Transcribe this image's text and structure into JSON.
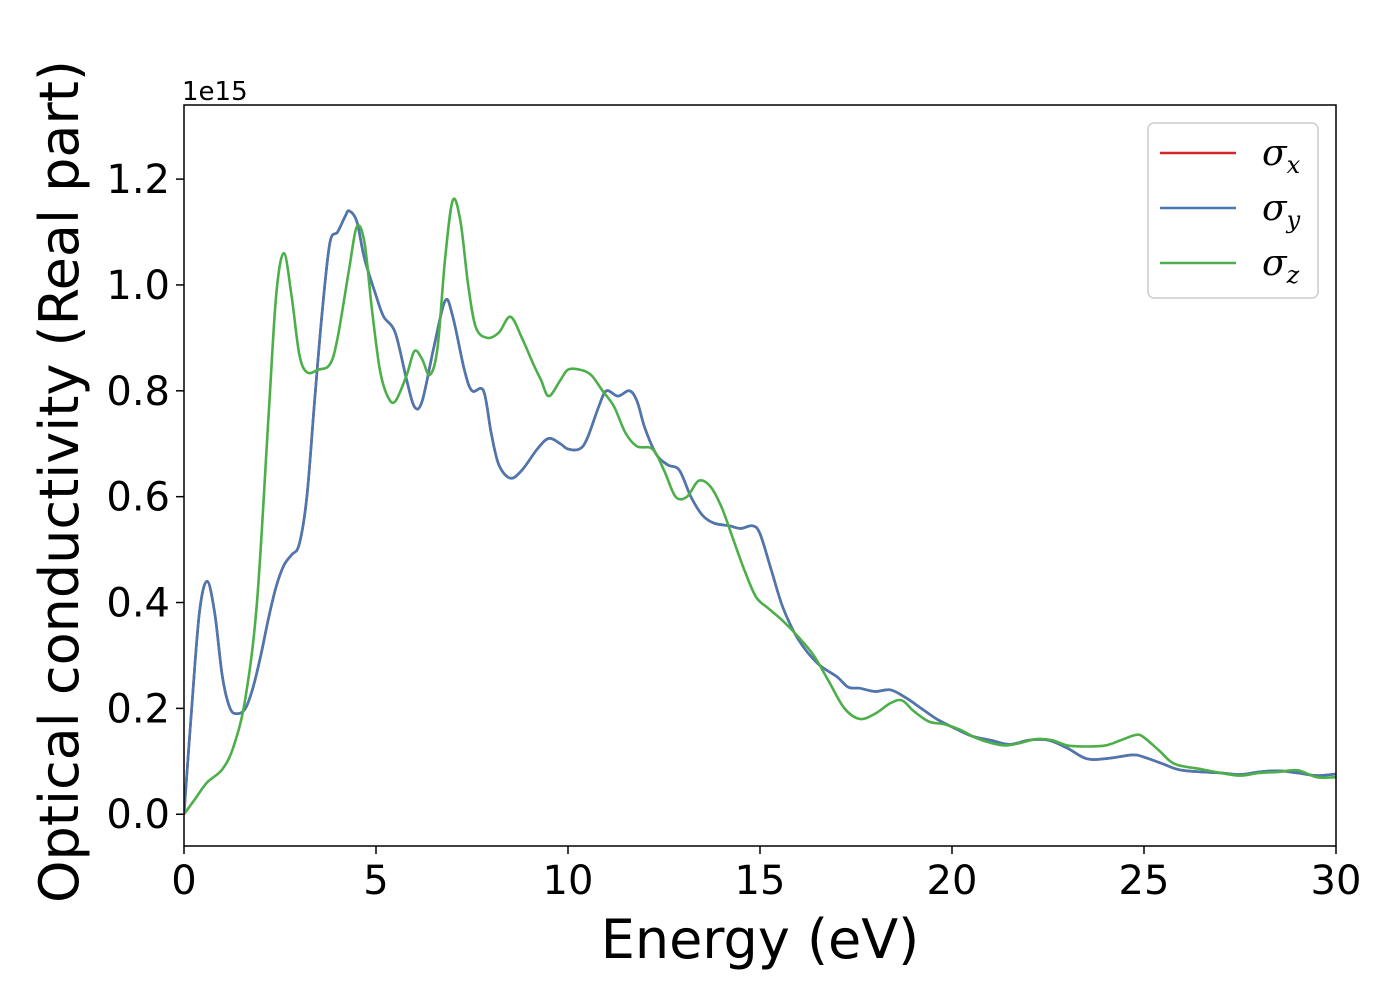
{
  "chart_data": {
    "type": "line",
    "title": "",
    "xlabel": "Energy (eV)",
    "ylabel": "Optical conductivity (Real part)",
    "y_offset_label": "1e15",
    "xlim": [
      0,
      30
    ],
    "ylim": [
      -0.06,
      1.34
    ],
    "x_ticks": [
      0,
      5,
      10,
      15,
      20,
      25,
      30
    ],
    "y_ticks": [
      0.0,
      0.2,
      0.4,
      0.6,
      0.8,
      1.0,
      1.2
    ],
    "x_tick_labels": [
      "0",
      "5",
      "10",
      "15",
      "20",
      "25",
      "30"
    ],
    "y_tick_labels": [
      "0.0",
      "0.2",
      "0.4",
      "0.6",
      "0.8",
      "1.0",
      "1.2"
    ],
    "grid": false,
    "legend_position": "top-right",
    "series": [
      {
        "name": "σx",
        "symbol": "σ",
        "subscript": "x",
        "color": "#d62728",
        "points": [
          [
            0,
            0
          ],
          [
            0.2,
            0.2
          ],
          [
            0.4,
            0.38
          ],
          [
            0.6,
            0.44
          ],
          [
            0.8,
            0.38
          ],
          [
            1.0,
            0.26
          ],
          [
            1.2,
            0.2
          ],
          [
            1.4,
            0.19
          ],
          [
            1.6,
            0.2
          ],
          [
            1.8,
            0.24
          ],
          [
            2.0,
            0.3
          ],
          [
            2.2,
            0.37
          ],
          [
            2.4,
            0.43
          ],
          [
            2.6,
            0.47
          ],
          [
            2.8,
            0.49
          ],
          [
            3.0,
            0.51
          ],
          [
            3.2,
            0.6
          ],
          [
            3.4,
            0.78
          ],
          [
            3.6,
            0.95
          ],
          [
            3.8,
            1.08
          ],
          [
            4.0,
            1.1
          ],
          [
            4.2,
            1.13
          ],
          [
            4.3,
            1.14
          ],
          [
            4.5,
            1.12
          ],
          [
            4.7,
            1.05
          ],
          [
            5.0,
            0.98
          ],
          [
            5.2,
            0.94
          ],
          [
            5.5,
            0.91
          ],
          [
            5.8,
            0.82
          ],
          [
            6.0,
            0.77
          ],
          [
            6.2,
            0.78
          ],
          [
            6.5,
            0.88
          ],
          [
            6.8,
            0.97
          ],
          [
            7.0,
            0.94
          ],
          [
            7.3,
            0.84
          ],
          [
            7.5,
            0.8
          ],
          [
            7.8,
            0.8
          ],
          [
            8.0,
            0.72
          ],
          [
            8.2,
            0.66
          ],
          [
            8.5,
            0.635
          ],
          [
            8.8,
            0.65
          ],
          [
            9.2,
            0.69
          ],
          [
            9.5,
            0.71
          ],
          [
            9.8,
            0.7
          ],
          [
            10.0,
            0.69
          ],
          [
            10.3,
            0.69
          ],
          [
            10.5,
            0.71
          ],
          [
            10.8,
            0.77
          ],
          [
            11.0,
            0.8
          ],
          [
            11.3,
            0.79
          ],
          [
            11.6,
            0.8
          ],
          [
            11.8,
            0.78
          ],
          [
            12.0,
            0.73
          ],
          [
            12.3,
            0.68
          ],
          [
            12.6,
            0.66
          ],
          [
            12.9,
            0.65
          ],
          [
            13.2,
            0.6
          ],
          [
            13.5,
            0.565
          ],
          [
            13.8,
            0.55
          ],
          [
            14.2,
            0.545
          ],
          [
            14.5,
            0.54
          ],
          [
            14.8,
            0.545
          ],
          [
            15.0,
            0.53
          ],
          [
            15.3,
            0.46
          ],
          [
            15.6,
            0.39
          ],
          [
            16.0,
            0.33
          ],
          [
            16.5,
            0.285
          ],
          [
            17.0,
            0.26
          ],
          [
            17.3,
            0.24
          ],
          [
            17.6,
            0.238
          ],
          [
            18.0,
            0.232
          ],
          [
            18.4,
            0.235
          ],
          [
            18.8,
            0.22
          ],
          [
            19.2,
            0.2
          ],
          [
            19.6,
            0.18
          ],
          [
            20.0,
            0.165
          ],
          [
            20.5,
            0.148
          ],
          [
            21.0,
            0.14
          ],
          [
            21.5,
            0.132
          ],
          [
            22.0,
            0.14
          ],
          [
            22.5,
            0.14
          ],
          [
            23.0,
            0.125
          ],
          [
            23.5,
            0.105
          ],
          [
            24.0,
            0.105
          ],
          [
            24.7,
            0.112
          ],
          [
            25.0,
            0.108
          ],
          [
            25.5,
            0.095
          ],
          [
            26.0,
            0.083
          ],
          [
            27.0,
            0.078
          ],
          [
            27.5,
            0.075
          ],
          [
            28.0,
            0.08
          ],
          [
            28.5,
            0.082
          ],
          [
            29.0,
            0.078
          ],
          [
            29.5,
            0.073
          ],
          [
            30.0,
            0.076
          ]
        ]
      },
      {
        "name": "σy",
        "symbol": "σ",
        "subscript": "y",
        "color": "#4a78b0",
        "points": [
          [
            0,
            0
          ],
          [
            0.2,
            0.2
          ],
          [
            0.4,
            0.38
          ],
          [
            0.6,
            0.44
          ],
          [
            0.8,
            0.38
          ],
          [
            1.0,
            0.26
          ],
          [
            1.2,
            0.2
          ],
          [
            1.4,
            0.19
          ],
          [
            1.6,
            0.2
          ],
          [
            1.8,
            0.24
          ],
          [
            2.0,
            0.3
          ],
          [
            2.2,
            0.37
          ],
          [
            2.4,
            0.43
          ],
          [
            2.6,
            0.47
          ],
          [
            2.8,
            0.49
          ],
          [
            3.0,
            0.51
          ],
          [
            3.2,
            0.6
          ],
          [
            3.4,
            0.78
          ],
          [
            3.6,
            0.95
          ],
          [
            3.8,
            1.08
          ],
          [
            4.0,
            1.1
          ],
          [
            4.2,
            1.13
          ],
          [
            4.3,
            1.14
          ],
          [
            4.5,
            1.12
          ],
          [
            4.7,
            1.05
          ],
          [
            5.0,
            0.98
          ],
          [
            5.2,
            0.94
          ],
          [
            5.5,
            0.91
          ],
          [
            5.8,
            0.82
          ],
          [
            6.0,
            0.77
          ],
          [
            6.2,
            0.78
          ],
          [
            6.5,
            0.88
          ],
          [
            6.8,
            0.97
          ],
          [
            7.0,
            0.94
          ],
          [
            7.3,
            0.84
          ],
          [
            7.5,
            0.8
          ],
          [
            7.8,
            0.8
          ],
          [
            8.0,
            0.72
          ],
          [
            8.2,
            0.66
          ],
          [
            8.5,
            0.635
          ],
          [
            8.8,
            0.65
          ],
          [
            9.2,
            0.69
          ],
          [
            9.5,
            0.71
          ],
          [
            9.8,
            0.7
          ],
          [
            10.0,
            0.69
          ],
          [
            10.3,
            0.69
          ],
          [
            10.5,
            0.71
          ],
          [
            10.8,
            0.77
          ],
          [
            11.0,
            0.8
          ],
          [
            11.3,
            0.79
          ],
          [
            11.6,
            0.8
          ],
          [
            11.8,
            0.78
          ],
          [
            12.0,
            0.73
          ],
          [
            12.3,
            0.68
          ],
          [
            12.6,
            0.66
          ],
          [
            12.9,
            0.65
          ],
          [
            13.2,
            0.6
          ],
          [
            13.5,
            0.565
          ],
          [
            13.8,
            0.55
          ],
          [
            14.2,
            0.545
          ],
          [
            14.5,
            0.54
          ],
          [
            14.8,
            0.545
          ],
          [
            15.0,
            0.53
          ],
          [
            15.3,
            0.46
          ],
          [
            15.6,
            0.39
          ],
          [
            16.0,
            0.33
          ],
          [
            16.5,
            0.285
          ],
          [
            17.0,
            0.26
          ],
          [
            17.3,
            0.24
          ],
          [
            17.6,
            0.238
          ],
          [
            18.0,
            0.232
          ],
          [
            18.4,
            0.235
          ],
          [
            18.8,
            0.22
          ],
          [
            19.2,
            0.2
          ],
          [
            19.6,
            0.18
          ],
          [
            20.0,
            0.165
          ],
          [
            20.5,
            0.148
          ],
          [
            21.0,
            0.14
          ],
          [
            21.5,
            0.132
          ],
          [
            22.0,
            0.14
          ],
          [
            22.5,
            0.14
          ],
          [
            23.0,
            0.125
          ],
          [
            23.5,
            0.105
          ],
          [
            24.0,
            0.105
          ],
          [
            24.7,
            0.112
          ],
          [
            25.0,
            0.108
          ],
          [
            25.5,
            0.095
          ],
          [
            26.0,
            0.083
          ],
          [
            27.0,
            0.078
          ],
          [
            27.5,
            0.075
          ],
          [
            28.0,
            0.08
          ],
          [
            28.5,
            0.082
          ],
          [
            29.0,
            0.078
          ],
          [
            29.5,
            0.073
          ],
          [
            30.0,
            0.076
          ]
        ]
      },
      {
        "name": "σz",
        "symbol": "σ",
        "subscript": "z",
        "color": "#4daf4a",
        "points": [
          [
            0,
            0
          ],
          [
            0.3,
            0.03
          ],
          [
            0.6,
            0.06
          ],
          [
            1.0,
            0.085
          ],
          [
            1.3,
            0.13
          ],
          [
            1.6,
            0.22
          ],
          [
            1.9,
            0.4
          ],
          [
            2.2,
            0.75
          ],
          [
            2.4,
            0.98
          ],
          [
            2.6,
            1.06
          ],
          [
            2.8,
            0.98
          ],
          [
            3.0,
            0.87
          ],
          [
            3.2,
            0.835
          ],
          [
            3.5,
            0.84
          ],
          [
            3.8,
            0.85
          ],
          [
            4.0,
            0.9
          ],
          [
            4.3,
            1.03
          ],
          [
            4.5,
            1.11
          ],
          [
            4.7,
            1.08
          ],
          [
            4.9,
            0.95
          ],
          [
            5.1,
            0.84
          ],
          [
            5.3,
            0.79
          ],
          [
            5.5,
            0.78
          ],
          [
            5.8,
            0.83
          ],
          [
            6.0,
            0.875
          ],
          [
            6.2,
            0.86
          ],
          [
            6.4,
            0.83
          ],
          [
            6.6,
            0.88
          ],
          [
            6.8,
            1.05
          ],
          [
            7.0,
            1.16
          ],
          [
            7.2,
            1.12
          ],
          [
            7.4,
            1.0
          ],
          [
            7.6,
            0.92
          ],
          [
            7.9,
            0.9
          ],
          [
            8.2,
            0.91
          ],
          [
            8.5,
            0.94
          ],
          [
            8.8,
            0.9
          ],
          [
            9.1,
            0.85
          ],
          [
            9.3,
            0.82
          ],
          [
            9.5,
            0.79
          ],
          [
            9.8,
            0.82
          ],
          [
            10.0,
            0.84
          ],
          [
            10.3,
            0.84
          ],
          [
            10.6,
            0.83
          ],
          [
            10.9,
            0.8
          ],
          [
            11.2,
            0.77
          ],
          [
            11.5,
            0.72
          ],
          [
            11.8,
            0.695
          ],
          [
            12.2,
            0.69
          ],
          [
            12.5,
            0.65
          ],
          [
            12.8,
            0.6
          ],
          [
            13.1,
            0.6
          ],
          [
            13.4,
            0.63
          ],
          [
            13.7,
            0.62
          ],
          [
            14.0,
            0.58
          ],
          [
            14.3,
            0.52
          ],
          [
            14.6,
            0.46
          ],
          [
            14.9,
            0.41
          ],
          [
            15.2,
            0.39
          ],
          [
            15.6,
            0.365
          ],
          [
            16.0,
            0.335
          ],
          [
            16.4,
            0.3
          ],
          [
            16.8,
            0.25
          ],
          [
            17.2,
            0.2
          ],
          [
            17.6,
            0.18
          ],
          [
            18.0,
            0.19
          ],
          [
            18.4,
            0.21
          ],
          [
            18.7,
            0.215
          ],
          [
            19.0,
            0.195
          ],
          [
            19.4,
            0.175
          ],
          [
            19.8,
            0.17
          ],
          [
            20.2,
            0.16
          ],
          [
            20.6,
            0.145
          ],
          [
            21.0,
            0.135
          ],
          [
            21.4,
            0.13
          ],
          [
            21.8,
            0.135
          ],
          [
            22.2,
            0.142
          ],
          [
            22.6,
            0.14
          ],
          [
            23.0,
            0.13
          ],
          [
            23.5,
            0.128
          ],
          [
            24.0,
            0.13
          ],
          [
            24.4,
            0.14
          ],
          [
            24.8,
            0.15
          ],
          [
            25.0,
            0.145
          ],
          [
            25.4,
            0.12
          ],
          [
            25.8,
            0.095
          ],
          [
            26.5,
            0.085
          ],
          [
            27.0,
            0.078
          ],
          [
            27.5,
            0.073
          ],
          [
            28.0,
            0.078
          ],
          [
            28.5,
            0.08
          ],
          [
            29.0,
            0.083
          ],
          [
            29.5,
            0.07
          ],
          [
            30.0,
            0.07
          ]
        ]
      }
    ]
  }
}
